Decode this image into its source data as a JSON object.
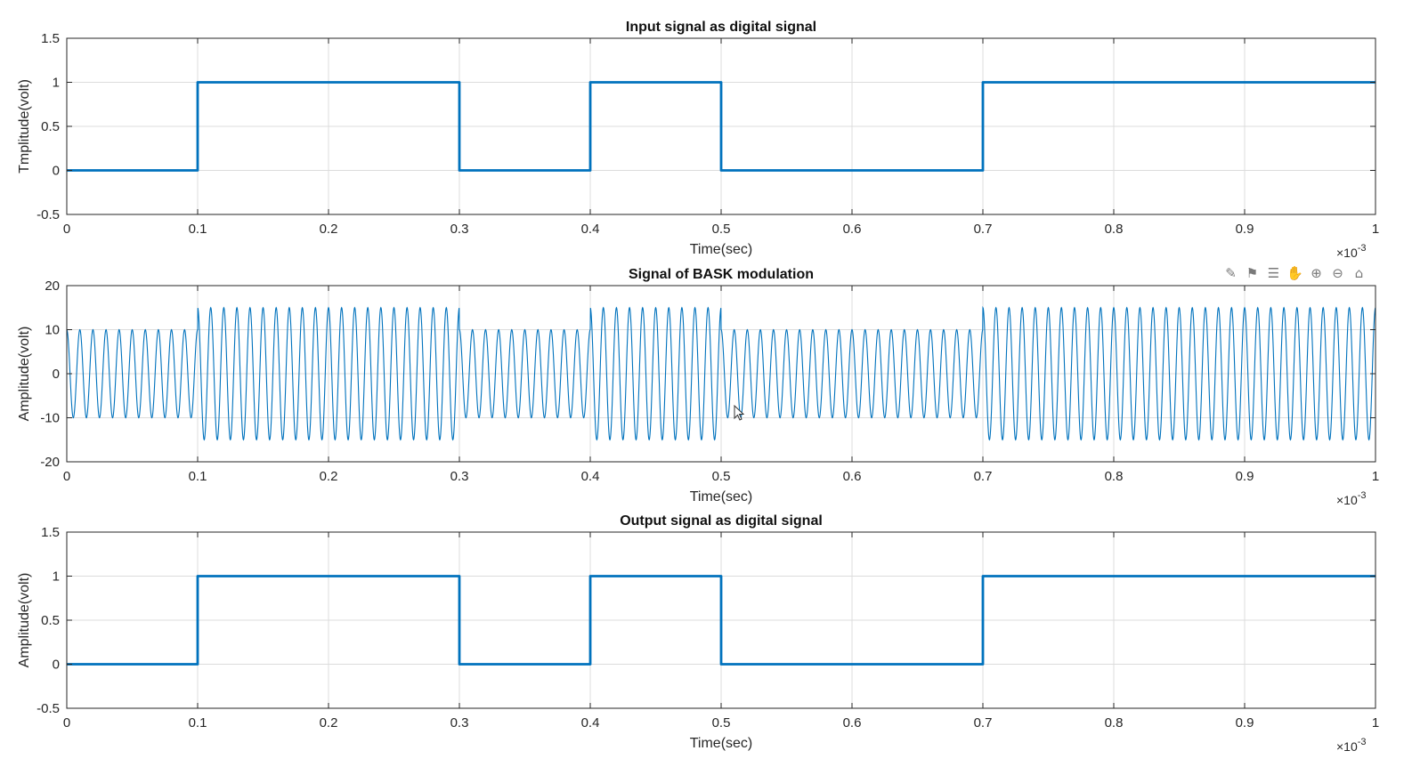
{
  "figure": {
    "background": "#ffffff",
    "axes_color": "#262626",
    "grid_color": "#dcdcdc",
    "line_color": "#0072bd"
  },
  "toolbar": {
    "icons": [
      "brush-icon",
      "data-tips-icon",
      "insert-legend-icon",
      "pan-hand-icon",
      "zoom-in-icon",
      "zoom-out-icon",
      "home-icon"
    ]
  },
  "chart_data": [
    {
      "type": "line",
      "title": "Input signal as digital signal",
      "xlabel": "Time(sec)",
      "ylabel": "Tmplitude(volt)",
      "x_exponent": "×10",
      "x_exponent_power": "-3",
      "xlim": [
        0,
        0.001
      ],
      "ylim": [
        -0.5,
        1.5
      ],
      "xticks": [
        0,
        0.1,
        0.2,
        0.3,
        0.4,
        0.5,
        0.6,
        0.7,
        0.8,
        0.9,
        1
      ],
      "xtick_labels": [
        "0",
        "0.1",
        "0.2",
        "0.3",
        "0.4",
        "0.5",
        "0.6",
        "0.7",
        "0.8",
        "0.9",
        "1"
      ],
      "yticks": [
        -0.5,
        0,
        0.5,
        1,
        1.5
      ],
      "ytick_labels": [
        "-0.5",
        "0",
        "0.5",
        "1",
        "1.5"
      ],
      "grid": true,
      "series": [
        {
          "kind": "step",
          "line_width": "thick",
          "bits": [
            0,
            1,
            1,
            0,
            1,
            0,
            0,
            1,
            1,
            1
          ],
          "bit_duration": 0.0001
        }
      ]
    },
    {
      "type": "line",
      "title": "Signal of  BASK modulation",
      "xlabel": "Time(sec)",
      "ylabel": "Amplitude(volt)",
      "x_exponent": "×10",
      "x_exponent_power": "-3",
      "xlim": [
        0,
        0.001
      ],
      "ylim": [
        -20,
        20
      ],
      "xticks": [
        0,
        0.1,
        0.2,
        0.3,
        0.4,
        0.5,
        0.6,
        0.7,
        0.8,
        0.9,
        1
      ],
      "xtick_labels": [
        "0",
        "0.1",
        "0.2",
        "0.3",
        "0.4",
        "0.5",
        "0.6",
        "0.7",
        "0.8",
        "0.9",
        "1"
      ],
      "yticks": [
        -20,
        -10,
        0,
        10,
        20
      ],
      "ytick_labels": [
        "-20",
        "-10",
        "0",
        "10",
        "20"
      ],
      "grid": true,
      "series": [
        {
          "kind": "bask",
          "line_width": "thin",
          "bits": [
            0,
            1,
            1,
            0,
            1,
            0,
            0,
            1,
            1,
            1
          ],
          "bit_duration": 0.0001,
          "amplitude_bit1": 15,
          "amplitude_bit0": 10,
          "carrier_frequency_hz": 100000
        }
      ]
    },
    {
      "type": "line",
      "title": "Output signal as digital signal",
      "xlabel": "Time(sec)",
      "ylabel": "Amplitude(volt)",
      "x_exponent": "×10",
      "x_exponent_power": "-3",
      "xlim": [
        0,
        0.001
      ],
      "ylim": [
        -0.5,
        1.5
      ],
      "xticks": [
        0,
        0.1,
        0.2,
        0.3,
        0.4,
        0.5,
        0.6,
        0.7,
        0.8,
        0.9,
        1
      ],
      "xtick_labels": [
        "0",
        "0.1",
        "0.2",
        "0.3",
        "0.4",
        "0.5",
        "0.6",
        "0.7",
        "0.8",
        "0.9",
        "1"
      ],
      "yticks": [
        -0.5,
        0,
        0.5,
        1,
        1.5
      ],
      "ytick_labels": [
        "-0.5",
        "0",
        "0.5",
        "1",
        "1.5"
      ],
      "grid": true,
      "series": [
        {
          "kind": "step",
          "line_width": "thick",
          "bits": [
            0,
            1,
            1,
            0,
            1,
            0,
            0,
            1,
            1,
            1
          ],
          "bit_duration": 0.0001
        }
      ]
    }
  ]
}
